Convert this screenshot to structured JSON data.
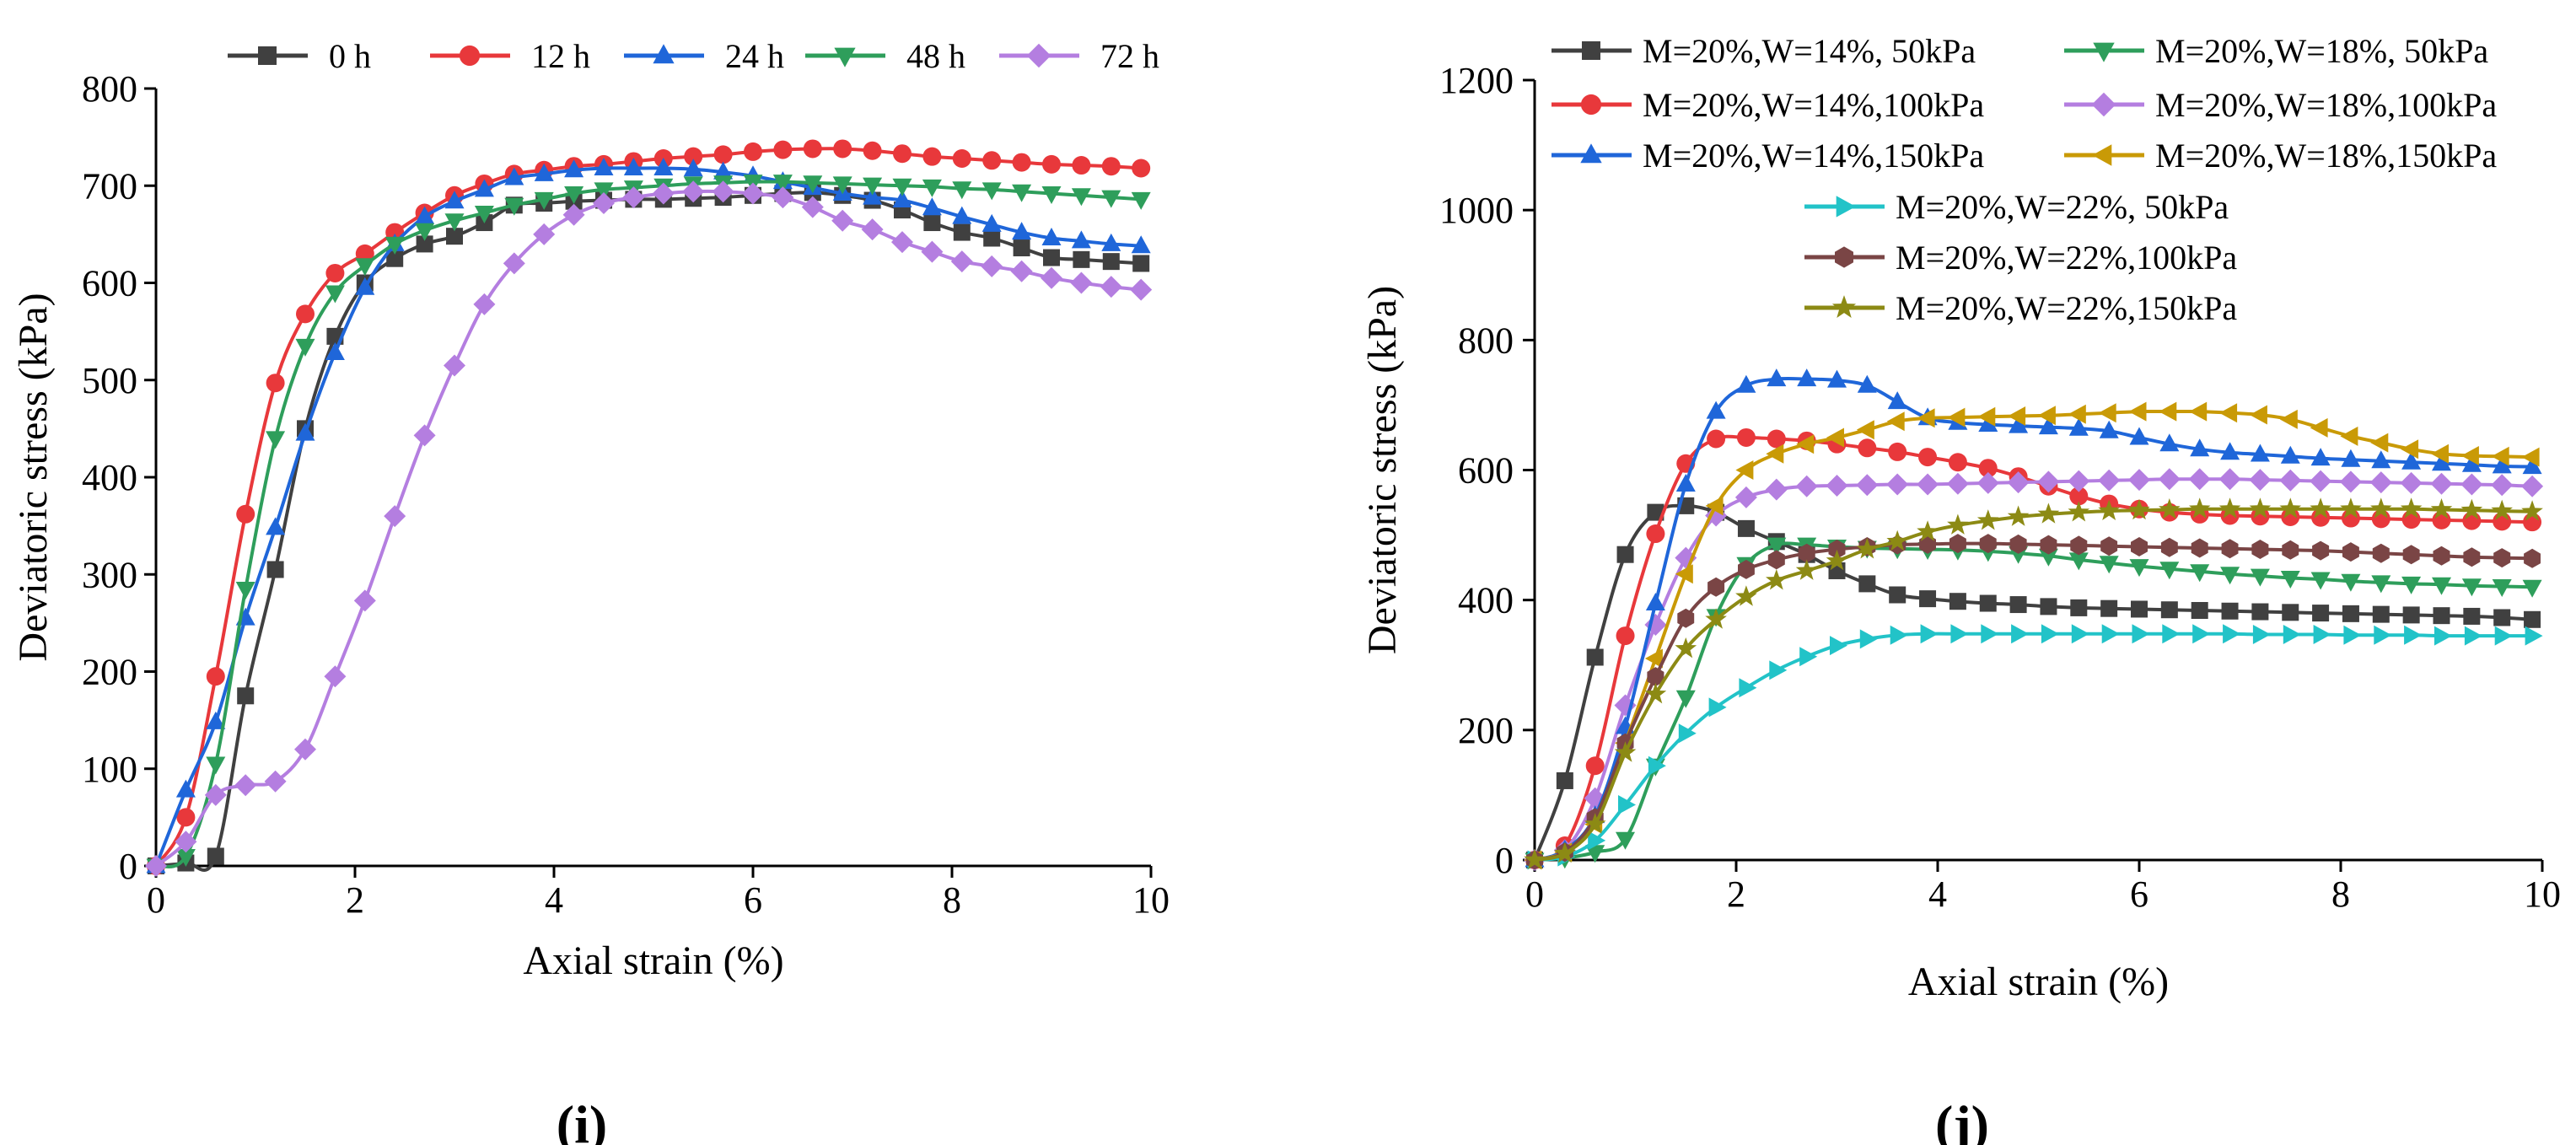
{
  "chart_data": [
    {
      "panel": "(i)",
      "panel_label": "(i)",
      "type": "line",
      "title": "",
      "xlabel": "Axial strain (%)",
      "ylabel": "Deviatoric stress (kPa)",
      "xlim": [
        0,
        10
      ],
      "ylim": [
        0,
        800
      ],
      "xticks": [
        0,
        2,
        4,
        6,
        8,
        10
      ],
      "yticks": [
        0,
        100,
        200,
        300,
        400,
        500,
        600,
        700,
        800
      ],
      "grid": false,
      "legend_position": "top",
      "series": [
        {
          "name": "0 h",
          "color": "#404040",
          "marker": "square",
          "x": [
            0,
            0.3,
            0.6,
            0.9,
            1.2,
            1.5,
            1.8,
            2.1,
            2.4,
            2.7,
            3.0,
            3.3,
            3.6,
            3.9,
            4.2,
            4.5,
            4.8,
            5.1,
            5.4,
            5.7,
            6.0,
            6.3,
            6.6,
            6.9,
            7.2,
            7.5,
            7.8,
            8.1,
            8.4,
            8.7,
            9.0,
            9.3,
            9.6,
            9.9
          ],
          "y": [
            0,
            3,
            10,
            175,
            305,
            450,
            545,
            600,
            625,
            640,
            648,
            662,
            680,
            682,
            684,
            685,
            686,
            686,
            687,
            688,
            690,
            692,
            693,
            690,
            685,
            675,
            662,
            652,
            646,
            636,
            626,
            624,
            622,
            620
          ]
        },
        {
          "name": "12 h",
          "color": "#e8383b",
          "marker": "circle",
          "x": [
            0,
            0.3,
            0.6,
            0.9,
            1.2,
            1.5,
            1.8,
            2.1,
            2.4,
            2.7,
            3.0,
            3.3,
            3.6,
            3.9,
            4.2,
            4.5,
            4.8,
            5.1,
            5.4,
            5.7,
            6.0,
            6.3,
            6.6,
            6.9,
            7.2,
            7.5,
            7.8,
            8.1,
            8.4,
            8.7,
            9.0,
            9.3,
            9.6,
            9.9
          ],
          "y": [
            0,
            50,
            195,
            362,
            497,
            568,
            610,
            630,
            652,
            672,
            690,
            702,
            712,
            716,
            720,
            722,
            725,
            728,
            730,
            732,
            735,
            737,
            738,
            738,
            736,
            733,
            730,
            728,
            726,
            724,
            722,
            721,
            720,
            718
          ]
        },
        {
          "name": "24 h",
          "color": "#1f66d9",
          "marker": "triangle-up",
          "x": [
            0,
            0.3,
            0.6,
            0.9,
            1.2,
            1.5,
            1.8,
            2.1,
            2.4,
            2.7,
            3.0,
            3.3,
            3.6,
            3.9,
            4.2,
            4.5,
            4.8,
            5.1,
            5.4,
            5.7,
            6.0,
            6.3,
            6.6,
            6.9,
            7.2,
            7.5,
            7.8,
            8.1,
            8.4,
            8.7,
            9.0,
            9.3,
            9.6,
            9.9
          ],
          "y": [
            0,
            78,
            148,
            255,
            348,
            445,
            528,
            595,
            640,
            668,
            684,
            696,
            708,
            712,
            716,
            718,
            718,
            718,
            717,
            714,
            710,
            704,
            698,
            692,
            688,
            685,
            677,
            668,
            660,
            652,
            646,
            643,
            640,
            638
          ]
        },
        {
          "name": "48 h",
          "color": "#2e9e5b",
          "marker": "triangle-down",
          "x": [
            0,
            0.3,
            0.6,
            0.9,
            1.2,
            1.5,
            1.8,
            2.1,
            2.4,
            2.7,
            3.0,
            3.3,
            3.6,
            3.9,
            4.2,
            4.5,
            4.8,
            5.1,
            5.4,
            5.7,
            6.0,
            6.3,
            6.6,
            6.9,
            7.2,
            7.5,
            7.8,
            8.1,
            8.4,
            8.7,
            9.0,
            9.3,
            9.6,
            9.9
          ],
          "y": [
            0,
            10,
            105,
            285,
            440,
            535,
            590,
            618,
            640,
            654,
            664,
            672,
            680,
            686,
            692,
            696,
            698,
            700,
            702,
            703,
            704,
            704,
            703,
            702,
            701,
            700,
            699,
            697,
            696,
            694,
            692,
            690,
            688,
            686
          ]
        },
        {
          "name": "72 h",
          "color": "#b47ee0",
          "marker": "diamond",
          "x": [
            0,
            0.3,
            0.6,
            0.9,
            1.2,
            1.5,
            1.8,
            2.1,
            2.4,
            2.7,
            3.0,
            3.3,
            3.6,
            3.9,
            4.2,
            4.5,
            4.8,
            5.1,
            5.4,
            5.7,
            6.0,
            6.3,
            6.6,
            6.9,
            7.2,
            7.5,
            7.8,
            8.1,
            8.4,
            8.7,
            9.0,
            9.3,
            9.6,
            9.9
          ],
          "y": [
            0,
            25,
            73,
            83,
            87,
            120,
            195,
            273,
            360,
            443,
            515,
            578,
            620,
            650,
            670,
            682,
            688,
            692,
            694,
            694,
            692,
            688,
            678,
            664,
            655,
            642,
            632,
            622,
            617,
            612,
            605,
            600,
            596,
            593
          ]
        }
      ]
    },
    {
      "panel": "(j)",
      "panel_label": "(j)",
      "type": "line",
      "title": "",
      "xlabel": "Axial strain (%)",
      "ylabel": "Deviatoric stress (kPa)",
      "xlim": [
        0,
        10
      ],
      "ylim": [
        0,
        1200
      ],
      "xticks": [
        0,
        2,
        4,
        6,
        8,
        10
      ],
      "yticks": [
        0,
        200,
        400,
        600,
        800,
        1000,
        1200
      ],
      "grid": false,
      "legend_position": "top",
      "series": [
        {
          "name": "M=20%,W=14%, 50kPa",
          "color": "#404040",
          "marker": "square",
          "x": [
            0,
            0.3,
            0.6,
            0.9,
            1.2,
            1.5,
            1.8,
            2.1,
            2.4,
            2.7,
            3.0,
            3.3,
            3.6,
            3.9,
            4.2,
            4.5,
            4.8,
            5.1,
            5.4,
            5.7,
            6.0,
            6.3,
            6.6,
            6.9,
            7.2,
            7.5,
            7.8,
            8.1,
            8.4,
            8.7,
            9.0,
            9.3,
            9.6,
            9.9
          ],
          "y": [
            0,
            122,
            312,
            470,
            535,
            545,
            535,
            510,
            490,
            470,
            445,
            425,
            408,
            402,
            398,
            395,
            393,
            390,
            388,
            387,
            386,
            385,
            384,
            383,
            382,
            381,
            380,
            379,
            378,
            377,
            376,
            375,
            373,
            370
          ]
        },
        {
          "name": "M=20%,W=18%, 50kPa",
          "color": "#2e9e5b",
          "marker": "triangle-down",
          "x": [
            0,
            0.3,
            0.6,
            0.9,
            1.2,
            1.5,
            1.8,
            2.1,
            2.4,
            2.7,
            3.0,
            3.3,
            3.6,
            3.9,
            4.2,
            4.5,
            4.8,
            5.1,
            5.4,
            5.7,
            6.0,
            6.3,
            6.6,
            6.9,
            7.2,
            7.5,
            7.8,
            8.1,
            8.4,
            8.7,
            9.0,
            9.3,
            9.6,
            9.9
          ],
          "y": [
            0,
            3,
            12,
            32,
            145,
            250,
            375,
            455,
            485,
            485,
            482,
            480,
            479,
            478,
            477,
            475,
            472,
            468,
            462,
            457,
            452,
            448,
            444,
            440,
            437,
            434,
            432,
            429,
            427,
            425,
            424,
            422,
            421,
            420
          ]
        },
        {
          "name": "M=20%,W=14%,100kPa",
          "color": "#e8383b",
          "marker": "circle",
          "x": [
            0,
            0.3,
            0.6,
            0.9,
            1.2,
            1.5,
            1.8,
            2.1,
            2.4,
            2.7,
            3.0,
            3.3,
            3.6,
            3.9,
            4.2,
            4.5,
            4.8,
            5.1,
            5.4,
            5.7,
            6.0,
            6.3,
            6.6,
            6.9,
            7.2,
            7.5,
            7.8,
            8.1,
            8.4,
            8.7,
            9.0,
            9.3,
            9.6,
            9.9
          ],
          "y": [
            0,
            22,
            145,
            345,
            502,
            610,
            648,
            650,
            648,
            645,
            640,
            634,
            628,
            620,
            612,
            603,
            590,
            575,
            560,
            548,
            540,
            535,
            532,
            530,
            529,
            528,
            527,
            526,
            525,
            524,
            523,
            522,
            521,
            520
          ]
        },
        {
          "name": "M=20%,W=18%,100kPa",
          "color": "#b47ee0",
          "marker": "diamond",
          "x": [
            0,
            0.3,
            0.6,
            0.9,
            1.2,
            1.5,
            1.8,
            2.1,
            2.4,
            2.7,
            3.0,
            3.3,
            3.6,
            3.9,
            4.2,
            4.5,
            4.8,
            5.1,
            5.4,
            5.7,
            6.0,
            6.3,
            6.6,
            6.9,
            7.2,
            7.5,
            7.8,
            8.1,
            8.4,
            8.7,
            9.0,
            9.3,
            9.6,
            9.9
          ],
          "y": [
            0,
            15,
            95,
            238,
            362,
            465,
            530,
            558,
            570,
            575,
            576,
            577,
            578,
            578,
            579,
            580,
            581,
            582,
            583,
            584,
            585,
            586,
            586,
            586,
            585,
            584,
            583,
            582,
            581,
            580,
            579,
            578,
            577,
            575
          ]
        },
        {
          "name": "M=20%,W=14%,150kPa",
          "color": "#1f66d9",
          "marker": "triangle-up",
          "x": [
            0,
            0.3,
            0.6,
            0.9,
            1.2,
            1.5,
            1.8,
            2.1,
            2.4,
            2.7,
            3.0,
            3.3,
            3.6,
            3.9,
            4.2,
            4.5,
            4.8,
            5.1,
            5.4,
            5.7,
            6.0,
            6.3,
            6.6,
            6.9,
            7.2,
            7.5,
            7.8,
            8.1,
            8.4,
            8.7,
            9.0,
            9.3,
            9.6,
            9.9
          ],
          "y": [
            0,
            15,
            68,
            205,
            395,
            578,
            690,
            730,
            740,
            740,
            738,
            730,
            705,
            680,
            673,
            670,
            668,
            666,
            664,
            660,
            650,
            640,
            632,
            627,
            624,
            621,
            618,
            616,
            614,
            612,
            610,
            608,
            606,
            605
          ]
        },
        {
          "name": "M=20%,W=18%,150kPa",
          "color": "#c99a06",
          "marker": "triangle-left",
          "x": [
            0,
            0.3,
            0.6,
            0.9,
            1.2,
            1.5,
            1.8,
            2.1,
            2.4,
            2.7,
            3.0,
            3.3,
            3.6,
            3.9,
            4.2,
            4.5,
            4.8,
            5.1,
            5.4,
            5.7,
            6.0,
            6.3,
            6.6,
            6.9,
            7.2,
            7.5,
            7.8,
            8.1,
            8.4,
            8.7,
            9.0,
            9.3,
            9.6,
            9.9
          ],
          "y": [
            0,
            12,
            55,
            180,
            310,
            440,
            545,
            600,
            625,
            640,
            650,
            662,
            675,
            680,
            681,
            682,
            683,
            684,
            686,
            688,
            690,
            690,
            690,
            688,
            685,
            678,
            665,
            652,
            642,
            632,
            625,
            622,
            621,
            620
          ]
        },
        {
          "name": "M=20%,W=22%, 50kPa",
          "color": "#22c3c8",
          "marker": "triangle-right",
          "x": [
            0,
            0.3,
            0.6,
            0.9,
            1.2,
            1.5,
            1.8,
            2.1,
            2.4,
            2.7,
            3.0,
            3.3,
            3.6,
            3.9,
            4.2,
            4.5,
            4.8,
            5.1,
            5.4,
            5.7,
            6.0,
            6.3,
            6.6,
            6.9,
            7.2,
            7.5,
            7.8,
            8.1,
            8.4,
            8.7,
            9.0,
            9.3,
            9.6,
            9.9
          ],
          "y": [
            0,
            5,
            30,
            85,
            145,
            195,
            235,
            265,
            292,
            313,
            330,
            340,
            346,
            348,
            348,
            348,
            348,
            348,
            348,
            348,
            348,
            348,
            348,
            348,
            347,
            347,
            347,
            346,
            346,
            346,
            345,
            345,
            345,
            345
          ]
        },
        {
          "name": "M=20%,W=22%,100kPa",
          "color": "#7a4545",
          "marker": "hexagon",
          "x": [
            0,
            0.3,
            0.6,
            0.9,
            1.2,
            1.5,
            1.8,
            2.1,
            2.4,
            2.7,
            3.0,
            3.3,
            3.6,
            3.9,
            4.2,
            4.5,
            4.8,
            5.1,
            5.4,
            5.7,
            6.0,
            6.3,
            6.6,
            6.9,
            7.2,
            7.5,
            7.8,
            8.1,
            8.4,
            8.7,
            9.0,
            9.3,
            9.6,
            9.9
          ],
          "y": [
            0,
            12,
            65,
            180,
            282,
            372,
            420,
            447,
            462,
            472,
            478,
            482,
            485,
            486,
            487,
            487,
            486,
            485,
            484,
            483,
            482,
            481,
            480,
            479,
            478,
            477,
            476,
            474,
            472,
            470,
            468,
            466,
            465,
            464
          ]
        },
        {
          "name": "M=20%,W=22%,150kPa",
          "color": "#8c8a14",
          "marker": "star",
          "x": [
            0,
            0.3,
            0.6,
            0.9,
            1.2,
            1.5,
            1.8,
            2.1,
            2.4,
            2.7,
            3.0,
            3.3,
            3.6,
            3.9,
            4.2,
            4.5,
            4.8,
            5.1,
            5.4,
            5.7,
            6.0,
            6.3,
            6.6,
            6.9,
            7.2,
            7.5,
            7.8,
            8.1,
            8.4,
            8.7,
            9.0,
            9.3,
            9.6,
            9.9
          ],
          "y": [
            0,
            10,
            55,
            165,
            255,
            325,
            370,
            405,
            430,
            445,
            460,
            478,
            490,
            505,
            515,
            522,
            528,
            532,
            535,
            537,
            538,
            539,
            540,
            540,
            540,
            540,
            540,
            540,
            540,
            540,
            539,
            538,
            537,
            536
          ]
        }
      ]
    }
  ]
}
